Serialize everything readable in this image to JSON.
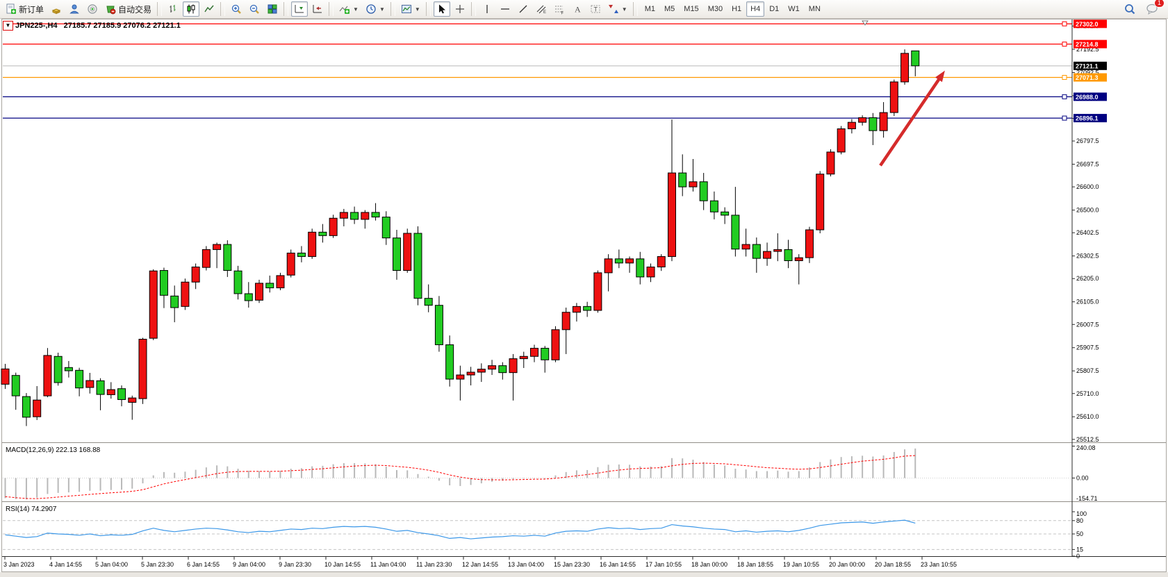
{
  "toolbar": {
    "new_order_label": "新订单",
    "auto_trading_label": "自动交易",
    "timeframes": [
      "M1",
      "M5",
      "M15",
      "M30",
      "H1",
      "H4",
      "D1",
      "W1",
      "MN"
    ],
    "selected_timeframe": "H4",
    "notification_badge": "1"
  },
  "chart": {
    "symbol_title": "JPN225-,H4",
    "ohlc_line": "27185.7 27185.9 27076.2 27121.1",
    "macd_label": "MACD(12,26,9) 222.13 168.88",
    "rsi_label": "RSI(14) 74.2907",
    "current_price_label": "27121.1",
    "symbol_marker": "▼"
  },
  "chart_data": {
    "type": "candlestick",
    "title": "JPN225-,H4",
    "symbol": "JPN225-",
    "timeframe": "H4",
    "up_color": "#ee1111",
    "down_color": "#22cc22",
    "candle_border": "#000000",
    "ylim": [
      25500,
      27315
    ],
    "y_ticks": [
      27292.5,
      27192.5,
      27092.5,
      26992.5,
      26895.0,
      26797.5,
      26697.5,
      26600.0,
      26500.0,
      26402.5,
      26302.5,
      26205.0,
      26105.0,
      26007.5,
      25907.5,
      25807.5,
      25710.0,
      25610.0,
      25512.5
    ],
    "x_labels": [
      "3 Jan 2023",
      "4 Jan 14:55",
      "5 Jan 04:00",
      "5 Jan 23:30",
      "6 Jan 14:55",
      "9 Jan 04:00",
      "9 Jan 23:30",
      "10 Jan 14:55",
      "11 Jan 04:00",
      "11 Jan 23:30",
      "12 Jan 14:55",
      "13 Jan 04:00",
      "15 Jan 23:30",
      "16 Jan 14:55",
      "17 Jan 10:55",
      "18 Jan 00:00",
      "18 Jan 18:55",
      "19 Jan 10:55",
      "20 Jan 00:00",
      "20 Jan 18:55",
      "23 Jan 10:55"
    ],
    "candles": [
      [
        25750,
        25838,
        25730,
        25816
      ],
      [
        25788,
        25800,
        25640,
        25700
      ],
      [
        25697,
        25712,
        25570,
        25608
      ],
      [
        25610,
        25742,
        25596,
        25682
      ],
      [
        25700,
        25906,
        25694,
        25874
      ],
      [
        25870,
        25886,
        25744,
        25757
      ],
      [
        25822,
        25850,
        25779,
        25808
      ],
      [
        25810,
        25821,
        25698,
        25734
      ],
      [
        25736,
        25799,
        25710,
        25766
      ],
      [
        25765,
        25776,
        25638,
        25706
      ],
      [
        25705,
        25759,
        25688,
        25727
      ],
      [
        25731,
        25745,
        25655,
        25684
      ],
      [
        25672,
        25701,
        25597,
        25691
      ],
      [
        25688,
        25950,
        25665,
        25944
      ],
      [
        25948,
        26245,
        25940,
        26238
      ],
      [
        26240,
        26252,
        26078,
        26133
      ],
      [
        26130,
        26175,
        26017,
        26080
      ],
      [
        26085,
        26205,
        26070,
        26190
      ],
      [
        26190,
        26270,
        26160,
        26255
      ],
      [
        26253,
        26345,
        26240,
        26330
      ],
      [
        26330,
        26360,
        26250,
        26352
      ],
      [
        26352,
        26370,
        26212,
        26240
      ],
      [
        26238,
        26260,
        26115,
        26140
      ],
      [
        26140,
        26190,
        26080,
        26110
      ],
      [
        26112,
        26200,
        26100,
        26185
      ],
      [
        26185,
        26218,
        26145,
        26165
      ],
      [
        26165,
        26230,
        26155,
        26218
      ],
      [
        26220,
        26330,
        26210,
        26315
      ],
      [
        26315,
        26345,
        26275,
        26300
      ],
      [
        26300,
        26420,
        26290,
        26405
      ],
      [
        26405,
        26440,
        26360,
        26390
      ],
      [
        26390,
        26480,
        26380,
        26465
      ],
      [
        26465,
        26505,
        26430,
        26490
      ],
      [
        26490,
        26515,
        26440,
        26460
      ],
      [
        26460,
        26500,
        26420,
        26490
      ],
      [
        26490,
        26530,
        26455,
        26470
      ],
      [
        26470,
        26495,
        26350,
        26380
      ],
      [
        26380,
        26415,
        26200,
        26240
      ],
      [
        26240,
        26420,
        26230,
        26400
      ],
      [
        26400,
        26430,
        26090,
        26120
      ],
      [
        26120,
        26180,
        26060,
        26090
      ],
      [
        26090,
        26130,
        25890,
        25920
      ],
      [
        25920,
        25960,
        25740,
        25772
      ],
      [
        25772,
        25830,
        25680,
        25790
      ],
      [
        25790,
        25825,
        25745,
        25802
      ],
      [
        25802,
        25840,
        25760,
        25815
      ],
      [
        25815,
        25855,
        25790,
        25830
      ],
      [
        25830,
        25845,
        25770,
        25800
      ],
      [
        25800,
        25880,
        25680,
        25860
      ],
      [
        25860,
        25890,
        25820,
        25870
      ],
      [
        25870,
        25920,
        25845,
        25905
      ],
      [
        25905,
        25915,
        25800,
        25855
      ],
      [
        25855,
        26000,
        25845,
        25985
      ],
      [
        25985,
        26080,
        25880,
        26060
      ],
      [
        26060,
        26100,
        26020,
        26085
      ],
      [
        26085,
        26105,
        26040,
        26068
      ],
      [
        26068,
        26240,
        26058,
        26230
      ],
      [
        26230,
        26310,
        26150,
        26290
      ],
      [
        26290,
        26330,
        26250,
        26272
      ],
      [
        26272,
        26300,
        26230,
        26290
      ],
      [
        26290,
        26320,
        26180,
        26212
      ],
      [
        26212,
        26270,
        26190,
        26255
      ],
      [
        26255,
        26310,
        26238,
        26300
      ],
      [
        26300,
        26890,
        26280,
        26660
      ],
      [
        26660,
        26740,
        26560,
        26600
      ],
      [
        26600,
        26720,
        26580,
        26622
      ],
      [
        26622,
        26660,
        26500,
        26540
      ],
      [
        26540,
        26580,
        26460,
        26492
      ],
      [
        26492,
        26512,
        26440,
        26478
      ],
      [
        26478,
        26600,
        26300,
        26332
      ],
      [
        26332,
        26420,
        26300,
        26352
      ],
      [
        26352,
        26382,
        26230,
        26292
      ],
      [
        26292,
        26360,
        26260,
        26322
      ],
      [
        26322,
        26400,
        26280,
        26330
      ],
      [
        26330,
        26372,
        26250,
        26282
      ],
      [
        26282,
        26310,
        26180,
        26295
      ],
      [
        26295,
        26428,
        26272,
        26415
      ],
      [
        26415,
        26668,
        26400,
        26655
      ],
      [
        26655,
        26762,
        26645,
        26750
      ],
      [
        26750,
        26862,
        26740,
        26850
      ],
      [
        26850,
        26892,
        26830,
        26878
      ],
      [
        26878,
        26908,
        26864,
        26898
      ],
      [
        26898,
        26918,
        26780,
        26842
      ],
      [
        26842,
        26965,
        26812,
        26920
      ],
      [
        26920,
        27062,
        26905,
        27052
      ],
      [
        27052,
        27192,
        27040,
        27175
      ],
      [
        27185.7,
        27185.9,
        27076.2,
        27121.1
      ]
    ],
    "hlines": [
      {
        "price": 27302.0,
        "color": "#ff0000",
        "label_bg": "#ff0000"
      },
      {
        "price": 27214.8,
        "color": "#ff0000",
        "label_bg": "#ff0000"
      },
      {
        "price": 27071.3,
        "color": "#ff9900",
        "label_bg": "#ff9900"
      },
      {
        "price": 26988.0,
        "color": "#000080",
        "label_bg": "#000080"
      },
      {
        "price": 26896.1,
        "color": "#000080",
        "label_bg": "#000080"
      }
    ],
    "current_price": {
      "price": 27121.1,
      "line_color": "#b8b8b8",
      "label_bg": "#000000"
    },
    "annotations": {
      "arrow": {
        "from_index": 82.7,
        "from_price": 26692,
        "to_index": 88.8,
        "to_price": 27101,
        "color": "#d52b2b"
      }
    },
    "macd": {
      "label": "MACD(12,26,9) 222.13 168.88",
      "ylim": [
        -170,
        248
      ],
      "scale_labels": [
        "240.08",
        "0.00",
        "-154.71"
      ],
      "hist_color": "#b9b9b9",
      "signal_color": "#ff0000",
      "hist": [
        -152,
        -158,
        -160,
        -148,
        -120,
        -112,
        -108,
        -104,
        -96,
        -95,
        -90,
        -88,
        -80,
        -40,
        20,
        45,
        40,
        48,
        62,
        80,
        95,
        88,
        70,
        55,
        52,
        50,
        55,
        70,
        74,
        88,
        92,
        104,
        112,
        112,
        110,
        104,
        86,
        60,
        58,
        30,
        10,
        -20,
        -55,
        -60,
        -52,
        -40,
        -28,
        -20,
        -8,
        -4,
        2,
        -4,
        20,
        45,
        58,
        60,
        82,
        100,
        102,
        100,
        88,
        86,
        90,
        150,
        148,
        138,
        120,
        102,
        94,
        70,
        64,
        52,
        52,
        56,
        48,
        52,
        80,
        120,
        140,
        158,
        164,
        168,
        162,
        170,
        196,
        216,
        222.13
      ],
      "signal": [
        -140,
        -148,
        -154,
        -155,
        -150,
        -143,
        -136,
        -130,
        -123,
        -117,
        -111,
        -106,
        -100,
        -88,
        -66,
        -44,
        -27,
        -12,
        3,
        18,
        33,
        44,
        49,
        50,
        50,
        50,
        51,
        55,
        59,
        65,
        70,
        77,
        84,
        90,
        94,
        96,
        94,
        87,
        81,
        71,
        59,
        43,
        23,
        7,
        -5,
        -12,
        -13,
        -14,
        -13,
        -11,
        -9,
        -8,
        -2,
        7,
        17,
        26,
        37,
        50,
        60,
        68,
        72,
        75,
        78,
        92,
        103,
        110,
        112,
        110,
        107,
        100,
        93,
        85,
        78,
        74,
        69,
        66,
        69,
        79,
        91,
        104,
        116,
        127,
        134,
        141,
        152,
        165,
        168.88
      ]
    },
    "rsi": {
      "label": "RSI(14) 74.2907",
      "ylim": [
        0,
        100
      ],
      "levels": [
        80,
        50,
        15
      ],
      "scale_labels": [
        "100",
        "80",
        "50",
        "15",
        "0"
      ],
      "line_color": "#3b97e8",
      "values": [
        48,
        45,
        42,
        44,
        52,
        50,
        49,
        47,
        50,
        46,
        48,
        47,
        49,
        57,
        63,
        58,
        55,
        58,
        61,
        63,
        62,
        59,
        55,
        53,
        56,
        55,
        58,
        61,
        60,
        63,
        62,
        65,
        67,
        66,
        67,
        65,
        61,
        56,
        58,
        53,
        50,
        46,
        40,
        42,
        39,
        41,
        43,
        44,
        46,
        45,
        47,
        45,
        52,
        56,
        57,
        56,
        61,
        64,
        62,
        63,
        60,
        62,
        63,
        71,
        68,
        66,
        63,
        61,
        60,
        55,
        57,
        54,
        56,
        57,
        55,
        58,
        63,
        69,
        72,
        75,
        76,
        77,
        74,
        77,
        79,
        81,
        74.29
      ]
    }
  }
}
